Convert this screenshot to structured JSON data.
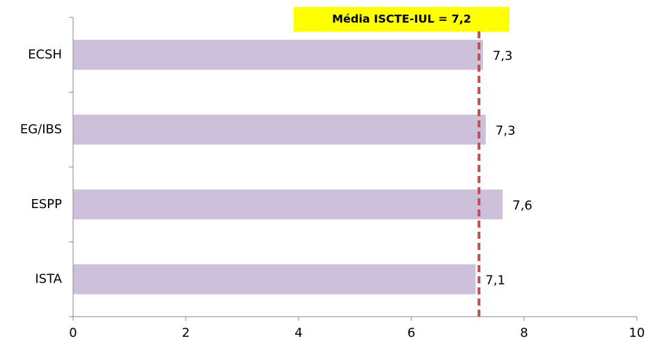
{
  "chart_data": {
    "type": "hbar",
    "categories": [
      "ECSH",
      "EG/IBS",
      "ESPP",
      "ISTA"
    ],
    "values": [
      7.27,
      7.32,
      7.62,
      7.14
    ],
    "value_labels": [
      "7,3",
      "7,3",
      "7,6",
      "7,1"
    ],
    "color": "#ccc0da",
    "xlim": [
      0,
      10
    ],
    "xticks": [
      0,
      2,
      4,
      6,
      8,
      10
    ],
    "reference_line": {
      "value": 7.2,
      "label": "Média ISCTE-IUL =  7,2",
      "color": "#c0504d",
      "box_color": "#ffff00"
    }
  }
}
